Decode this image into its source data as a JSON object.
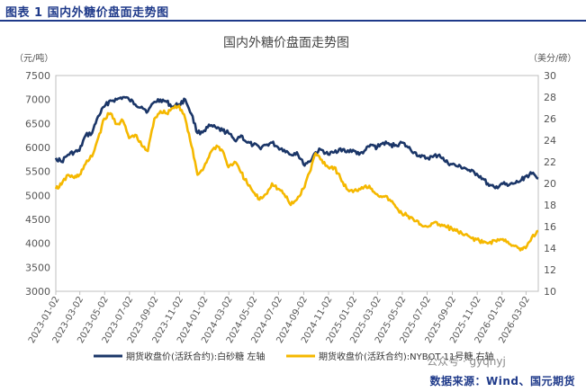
{
  "figure": {
    "heading": "图表 1 国内外糖价盘面走势图",
    "source": "数据来源：Wind、国元期货",
    "watermark": "公众号 · gyqhyj"
  },
  "colors": {
    "navy": "#1b3668",
    "gold": "#f5b800",
    "accent_text": "#1f3a8a"
  },
  "chart_data": {
    "type": "line",
    "title": "国内外糖价盘面走势图",
    "left_unit": "（元/吨）",
    "right_unit": "（美分/磅）",
    "ylim_left": [
      3000,
      7500
    ],
    "ylim_right": [
      10,
      30
    ],
    "yticks_left": [
      "3000",
      "3500",
      "4000",
      "4500",
      "5000",
      "5500",
      "6000",
      "6500",
      "7000",
      "7500"
    ],
    "yticks_right": [
      "10",
      "12",
      "14",
      "16",
      "18",
      "20",
      "22",
      "24",
      "26",
      "28",
      "30"
    ],
    "xticks": [
      "2023-01-02",
      "2023-03-02",
      "2023-05-02",
      "2023-07-02",
      "2023-09-02",
      "2023-11-02",
      "2024-01-02",
      "2024-03-02",
      "2024-05-02",
      "2024-07-02",
      "2024-09-02",
      "2024-11-02",
      "2025-01-02",
      "2025-03-02",
      "2025-05-02",
      "2025-07-02",
      "2025-09-02",
      "2025-11-02",
      "2026-01-02",
      "2026-03-02"
    ],
    "x_start": "2023-01-02",
    "x_end": "2026-04-01",
    "series": [
      {
        "name": "期货收盘价(活跃合约):白砂糖 左轴",
        "axis": "left",
        "color": "#1b3668",
        "points": [
          [
            "2023-01-02",
            5780
          ],
          [
            "2023-01-16",
            5700
          ],
          [
            "2023-02-01",
            5850
          ],
          [
            "2023-02-16",
            5900
          ],
          [
            "2023-03-01",
            5930
          ],
          [
            "2023-03-16",
            6250
          ],
          [
            "2023-04-01",
            6300
          ],
          [
            "2023-04-16",
            6650
          ],
          [
            "2023-05-01",
            6850
          ],
          [
            "2023-05-16",
            6980
          ],
          [
            "2023-06-01",
            7000
          ],
          [
            "2023-06-16",
            7050
          ],
          [
            "2023-07-01",
            7000
          ],
          [
            "2023-07-16",
            6900
          ],
          [
            "2023-08-01",
            6850
          ],
          [
            "2023-08-16",
            6750
          ],
          [
            "2023-09-01",
            6950
          ],
          [
            "2023-09-16",
            7000
          ],
          [
            "2023-10-01",
            6950
          ],
          [
            "2023-10-16",
            6850
          ],
          [
            "2023-11-01",
            6900
          ],
          [
            "2023-11-16",
            7000
          ],
          [
            "2023-12-01",
            6700
          ],
          [
            "2023-12-16",
            6300
          ],
          [
            "2024-01-01",
            6350
          ],
          [
            "2024-01-16",
            6450
          ],
          [
            "2024-02-01",
            6400
          ],
          [
            "2024-02-16",
            6350
          ],
          [
            "2024-03-01",
            6300
          ],
          [
            "2024-03-16",
            6150
          ],
          [
            "2024-04-01",
            6250
          ],
          [
            "2024-04-16",
            6100
          ],
          [
            "2024-05-01",
            6050
          ],
          [
            "2024-05-16",
            6000
          ],
          [
            "2024-06-01",
            6050
          ],
          [
            "2024-06-16",
            6100
          ],
          [
            "2024-07-01",
            6000
          ],
          [
            "2024-07-16",
            5950
          ],
          [
            "2024-08-01",
            5850
          ],
          [
            "2024-08-16",
            5900
          ],
          [
            "2024-09-01",
            5650
          ],
          [
            "2024-09-16",
            5700
          ],
          [
            "2024-10-01",
            5900
          ],
          [
            "2024-10-16",
            5950
          ],
          [
            "2024-11-01",
            5850
          ],
          [
            "2024-11-16",
            5900
          ],
          [
            "2024-12-01",
            5980
          ],
          [
            "2024-12-16",
            5900
          ],
          [
            "2025-01-01",
            5950
          ],
          [
            "2025-01-16",
            5850
          ],
          [
            "2025-02-01",
            5950
          ],
          [
            "2025-02-16",
            6050
          ],
          [
            "2025-03-01",
            6000
          ],
          [
            "2025-03-16",
            6100
          ],
          [
            "2025-04-01",
            6050
          ],
          [
            "2025-04-16",
            6050
          ],
          [
            "2025-05-01",
            6100
          ],
          [
            "2025-05-16",
            6000
          ],
          [
            "2025-06-01",
            5900
          ],
          [
            "2025-06-16",
            5800
          ],
          [
            "2025-07-01",
            5780
          ],
          [
            "2025-07-16",
            5800
          ],
          [
            "2025-08-01",
            5850
          ],
          [
            "2025-08-16",
            5700
          ],
          [
            "2025-09-01",
            5650
          ],
          [
            "2025-09-16",
            5600
          ],
          [
            "2025-10-01",
            5580
          ],
          [
            "2025-10-16",
            5500
          ],
          [
            "2025-11-01",
            5450
          ],
          [
            "2025-11-16",
            5350
          ],
          [
            "2025-12-01",
            5200
          ],
          [
            "2025-12-16",
            5150
          ],
          [
            "2026-01-01",
            5250
          ],
          [
            "2026-01-16",
            5200
          ],
          [
            "2026-02-01",
            5250
          ],
          [
            "2026-02-16",
            5300
          ],
          [
            "2026-03-01",
            5400
          ],
          [
            "2026-03-16",
            5450
          ],
          [
            "2026-04-01",
            5350
          ]
        ]
      },
      {
        "name": "期货收盘价(活跃合约):NYBOT 11号糖 右轴",
        "axis": "right",
        "color": "#f5b800",
        "points": [
          [
            "2023-01-02",
            19.5
          ],
          [
            "2023-01-16",
            19.9
          ],
          [
            "2023-02-01",
            20.8
          ],
          [
            "2023-02-16",
            20.5
          ],
          [
            "2023-03-01",
            20.8
          ],
          [
            "2023-03-16",
            21.8
          ],
          [
            "2023-04-01",
            22.5
          ],
          [
            "2023-04-16",
            24.2
          ],
          [
            "2023-05-01",
            26.0
          ],
          [
            "2023-05-16",
            26.5
          ],
          [
            "2023-06-01",
            25.5
          ],
          [
            "2023-06-16",
            25.8
          ],
          [
            "2023-07-01",
            24.2
          ],
          [
            "2023-07-16",
            24.5
          ],
          [
            "2023-08-01",
            23.5
          ],
          [
            "2023-08-16",
            23.0
          ],
          [
            "2023-09-01",
            26.0
          ],
          [
            "2023-09-16",
            26.7
          ],
          [
            "2023-10-01",
            26.5
          ],
          [
            "2023-10-16",
            27.0
          ],
          [
            "2023-11-01",
            27.2
          ],
          [
            "2023-11-16",
            26.0
          ],
          [
            "2023-12-01",
            23.5
          ],
          [
            "2023-12-16",
            20.8
          ],
          [
            "2024-01-01",
            21.5
          ],
          [
            "2024-01-16",
            22.8
          ],
          [
            "2024-02-01",
            23.5
          ],
          [
            "2024-02-16",
            23.0
          ],
          [
            "2024-03-01",
            21.5
          ],
          [
            "2024-03-16",
            22.0
          ],
          [
            "2024-04-01",
            21.0
          ],
          [
            "2024-04-16",
            20.0
          ],
          [
            "2024-05-01",
            19.2
          ],
          [
            "2024-05-16",
            18.5
          ],
          [
            "2024-06-01",
            19.0
          ],
          [
            "2024-06-16",
            20.0
          ],
          [
            "2024-07-01",
            19.5
          ],
          [
            "2024-07-16",
            19.0
          ],
          [
            "2024-08-01",
            18.0
          ],
          [
            "2024-08-16",
            18.5
          ],
          [
            "2024-09-01",
            19.5
          ],
          [
            "2024-09-16",
            21.0
          ],
          [
            "2024-10-01",
            22.8
          ],
          [
            "2024-10-16",
            22.2
          ],
          [
            "2024-11-01",
            21.5
          ],
          [
            "2024-11-16",
            21.5
          ],
          [
            "2024-12-01",
            20.5
          ],
          [
            "2024-12-16",
            19.5
          ],
          [
            "2025-01-01",
            19.2
          ],
          [
            "2025-01-16",
            19.5
          ],
          [
            "2025-02-01",
            19.8
          ],
          [
            "2025-02-16",
            19.5
          ],
          [
            "2025-03-01",
            19.0
          ],
          [
            "2025-03-16",
            18.8
          ],
          [
            "2025-04-01",
            18.5
          ],
          [
            "2025-04-16",
            17.8
          ],
          [
            "2025-05-01",
            17.2
          ],
          [
            "2025-05-16",
            17.0
          ],
          [
            "2025-06-01",
            16.5
          ],
          [
            "2025-06-16",
            16.2
          ],
          [
            "2025-07-01",
            16.0
          ],
          [
            "2025-07-16",
            16.3
          ],
          [
            "2025-08-01",
            16.2
          ],
          [
            "2025-08-16",
            16.0
          ],
          [
            "2025-09-01",
            15.8
          ],
          [
            "2025-09-16",
            15.5
          ],
          [
            "2025-10-01",
            15.2
          ],
          [
            "2025-10-16",
            15.0
          ],
          [
            "2025-11-01",
            14.8
          ],
          [
            "2025-11-16",
            14.5
          ],
          [
            "2025-12-01",
            14.5
          ],
          [
            "2025-12-16",
            14.7
          ],
          [
            "2026-01-01",
            14.8
          ],
          [
            "2026-01-16",
            14.6
          ],
          [
            "2026-02-01",
            14.2
          ],
          [
            "2026-02-16",
            13.8
          ],
          [
            "2026-03-01",
            14.0
          ],
          [
            "2026-03-16",
            15.0
          ],
          [
            "2026-04-01",
            15.6
          ]
        ]
      }
    ],
    "grid": false
  }
}
